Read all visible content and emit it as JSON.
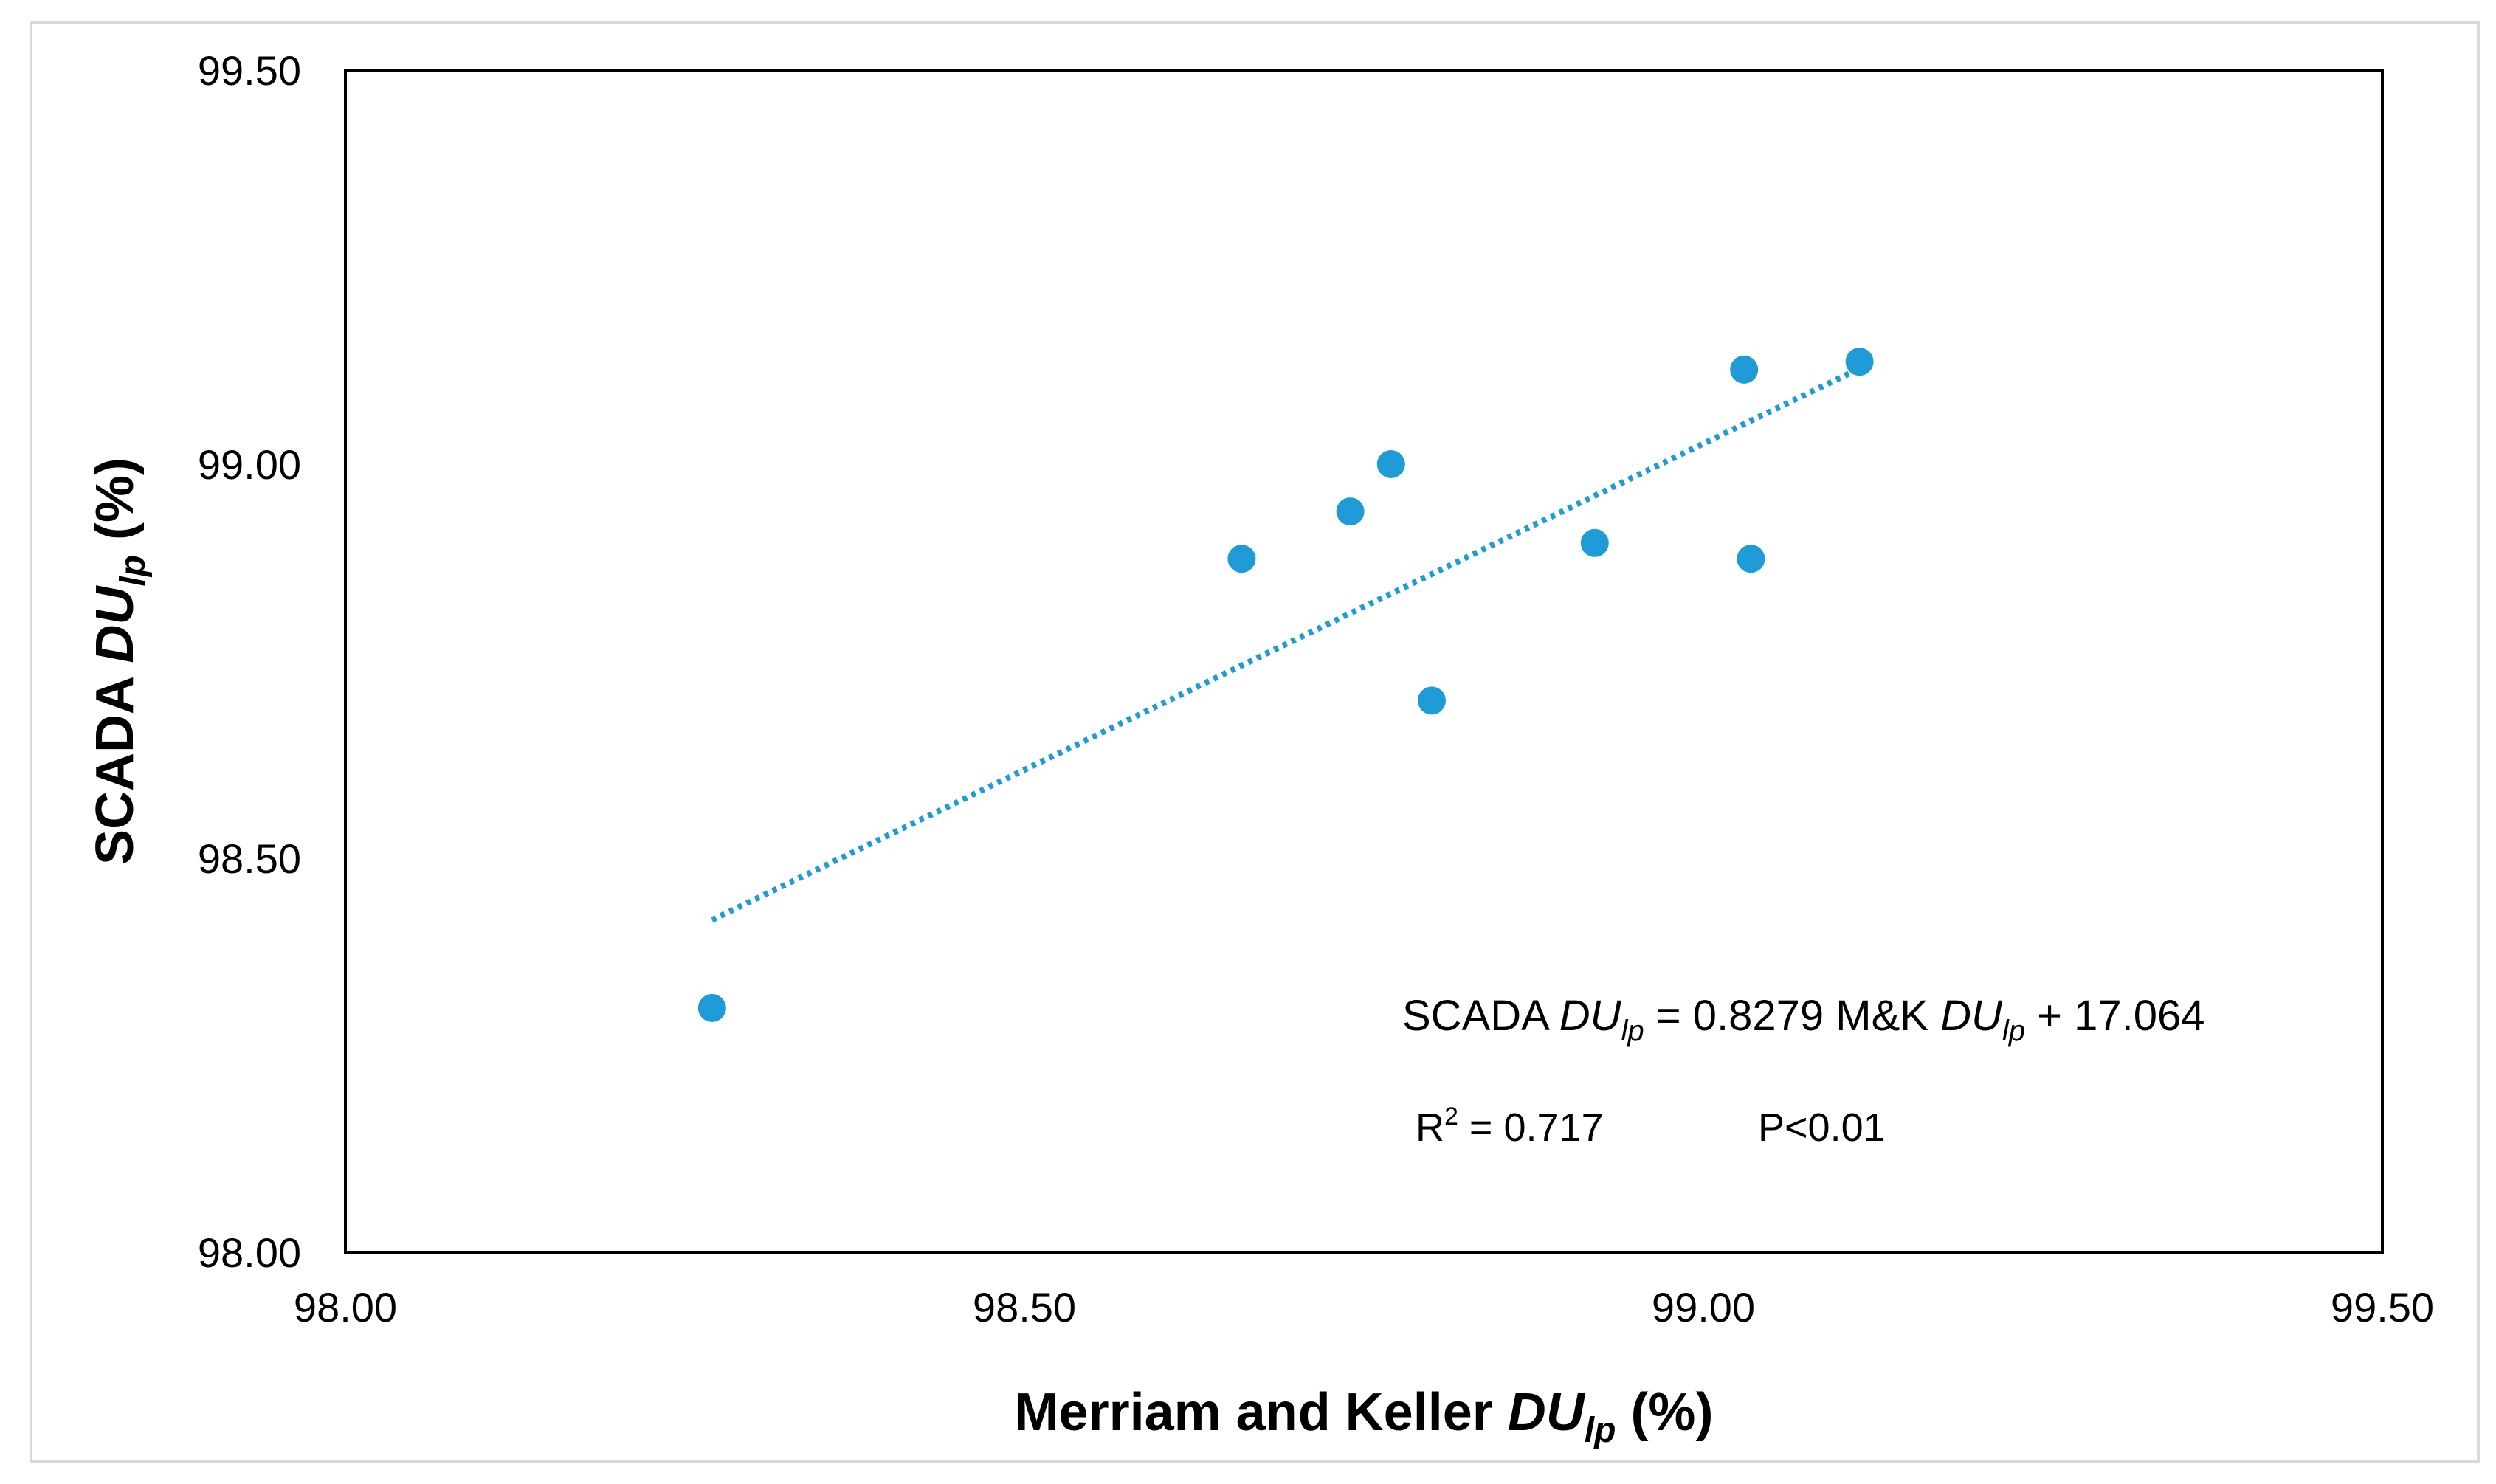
{
  "chart_data": {
    "type": "scatter",
    "title": "",
    "xlabel": {
      "prefix": "Merriam and Keller ",
      "var": "DU",
      "sub": "lp",
      "suffix": " (%)"
    },
    "ylabel": {
      "prefix": "SCADA ",
      "var": "DU",
      "sub": "lp",
      "suffix": "  (%)"
    },
    "xlim": [
      98.0,
      99.5
    ],
    "ylim": [
      98.0,
      99.5
    ],
    "xticks": [
      "98.00",
      "98.50",
      "99.00",
      "99.50"
    ],
    "yticks": [
      "98.00",
      "98.50",
      "99.00",
      "99.50"
    ],
    "grid": false,
    "legend": "none",
    "marker_color": "#1f9bd7",
    "trend_color": "#1f9bd7",
    "points": [
      {
        "x": 98.27,
        "y": 98.31
      },
      {
        "x": 98.66,
        "y": 98.88
      },
      {
        "x": 98.74,
        "y": 98.94
      },
      {
        "x": 98.77,
        "y": 99.0
      },
      {
        "x": 98.8,
        "y": 98.7
      },
      {
        "x": 98.92,
        "y": 98.9
      },
      {
        "x": 99.03,
        "y": 99.12
      },
      {
        "x": 99.035,
        "y": 98.88
      },
      {
        "x": 99.115,
        "y": 99.13
      }
    ],
    "trendline": {
      "type": "linear",
      "slope": 0.8279,
      "intercept": 17.064,
      "x_range": [
        98.27,
        99.115
      ]
    },
    "annotations": {
      "equation": {
        "lhs_prefix": "SCADA ",
        "lhs_var": "DU",
        "lhs_sub": "lp",
        "middle": " = 0.8279 M&K ",
        "rhs_var": "DU",
        "rhs_sub": "lp",
        "tail": " + 17.064"
      },
      "r2": {
        "label": "R",
        "sup": "2",
        "value": " = 0.717"
      },
      "p_value": "P<0.01"
    }
  }
}
